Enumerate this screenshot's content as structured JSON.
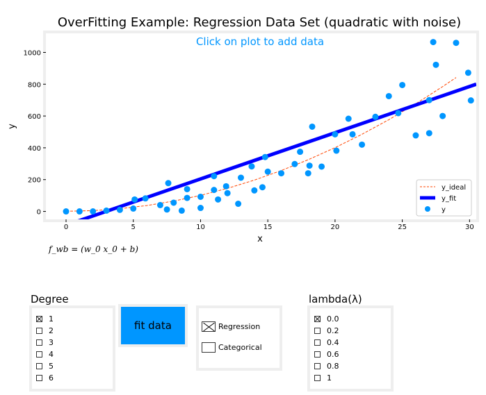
{
  "chart_data": {
    "type": "scatter",
    "title": "OverFitting Example: Regression Data Set (quadratic with noise)",
    "subtitle": "Click on plot to add data",
    "xlabel": "x",
    "ylabel": "y",
    "xlim": [
      -1.5,
      30.5
    ],
    "ylim": [
      -50,
      1120
    ],
    "xticks": [
      0,
      5,
      10,
      15,
      20,
      25,
      30
    ],
    "yticks": [
      0,
      200,
      400,
      600,
      800,
      1000
    ],
    "grid": false,
    "legend_position": "lower-right",
    "series": [
      {
        "name": "y_ideal",
        "kind": "dashed-line",
        "color": "#ff4500",
        "x": [
          0,
          2,
          4,
          6,
          8,
          10,
          12,
          14,
          16,
          18,
          20,
          22,
          24,
          26,
          28,
          29
        ],
        "y": [
          1,
          5,
          17,
          37,
          65,
          101,
          145,
          197,
          257,
          325,
          401,
          485,
          577,
          677,
          785,
          842
        ]
      },
      {
        "name": "y_fit",
        "kind": "line",
        "color": "#0000ff",
        "x": [
          -1.5,
          30.5
        ],
        "y": [
          -130,
          800
        ]
      },
      {
        "name": "y",
        "kind": "scatter",
        "color": "#0096ff",
        "points": [
          [
            0,
            0
          ],
          [
            1,
            0
          ],
          [
            2,
            0
          ],
          [
            3,
            5
          ],
          [
            4,
            10
          ],
          [
            5,
            18
          ],
          [
            5.1,
            75
          ],
          [
            5.9,
            82
          ],
          [
            7,
            40
          ],
          [
            7.5,
            12
          ],
          [
            7.6,
            178
          ],
          [
            8,
            55
          ],
          [
            8.6,
            5
          ],
          [
            9,
            85
          ],
          [
            9,
            140
          ],
          [
            10,
            22
          ],
          [
            10,
            92
          ],
          [
            11,
            135
          ],
          [
            11,
            222
          ],
          [
            11.3,
            75
          ],
          [
            11.9,
            158
          ],
          [
            12,
            115
          ],
          [
            12.8,
            48
          ],
          [
            13,
            212
          ],
          [
            13.8,
            283
          ],
          [
            14,
            132
          ],
          [
            14.6,
            152
          ],
          [
            14.8,
            342
          ],
          [
            15,
            250
          ],
          [
            16,
            240
          ],
          [
            17,
            298
          ],
          [
            17.4,
            375
          ],
          [
            18,
            240
          ],
          [
            18.1,
            288
          ],
          [
            18.3,
            533
          ],
          [
            19,
            282
          ],
          [
            20,
            485
          ],
          [
            20.1,
            382
          ],
          [
            21,
            583
          ],
          [
            21.3,
            485
          ],
          [
            22,
            420
          ],
          [
            23,
            595
          ],
          [
            24,
            725
          ],
          [
            24.7,
            618
          ],
          [
            25,
            795
          ],
          [
            26,
            478
          ],
          [
            27,
            492
          ],
          [
            27,
            700
          ],
          [
            27.3,
            1065
          ],
          [
            27.5,
            922
          ],
          [
            28,
            600
          ],
          [
            29,
            1060
          ],
          [
            29.9,
            872
          ],
          [
            30.1,
            698
          ]
        ]
      }
    ]
  },
  "formula": "f_wb = (w_0 x_0 + b)",
  "controls": {
    "degree": {
      "title": "Degree",
      "options": [
        "1",
        "2",
        "3",
        "4",
        "5",
        "6"
      ],
      "selected": "1"
    },
    "fit_button_label": "fit data",
    "mode": {
      "options": [
        "Regression",
        "Categorical"
      ],
      "selected": "Regression"
    },
    "lambda": {
      "title": "lambda(λ)",
      "options": [
        "0.0",
        "0.2",
        "0.4",
        "0.6",
        "0.8",
        "1"
      ],
      "selected": "0.0"
    }
  },
  "colors": {
    "accent": "#0096ff",
    "fit_line": "#0000ff",
    "ideal_line": "#ff4500",
    "panel_border": "#eeeeee"
  }
}
